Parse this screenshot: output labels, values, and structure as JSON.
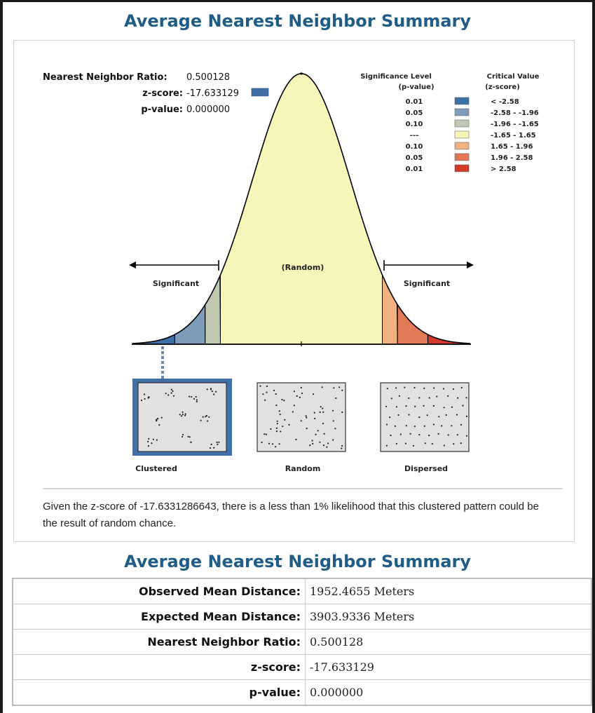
{
  "title_top": "Average Nearest Neighbor Summary",
  "title_table": "Average Nearest Neighbor Summary",
  "stats_box": {
    "ratio_label": "Nearest Neighbor Ratio:",
    "ratio_value": "0.500128",
    "z_label": "z-score:",
    "z_value": "-17.633129",
    "p_label": "p-value:",
    "p_value": "0.000000"
  },
  "legend": {
    "header_sig": "Significance Level",
    "header_sig_sub": "(p-value)",
    "header_crit": "Critical Value",
    "header_crit_sub": "(z-score)",
    "rows": [
      {
        "p": "0.01",
        "z": "< -2.58",
        "color": "#3f6fa6"
      },
      {
        "p": "0.05",
        "z": "-2.58 - -1.96",
        "color": "#7f9bbb"
      },
      {
        "p": "0.10",
        "z": "-1.96 - -1.65",
        "color": "#bfc9b1"
      },
      {
        "p": "---",
        "z": "-1.65 - 1.65",
        "color": "#f7f5b9"
      },
      {
        "p": "0.10",
        "z": "1.65 - 1.96",
        "color": "#f2b27f"
      },
      {
        "p": "0.05",
        "z": "1.96 - 2.58",
        "color": "#e27a55"
      },
      {
        "p": "0.01",
        "z": "> 2.58",
        "color": "#d23a2b"
      }
    ]
  },
  "chart_labels": {
    "random": "(Random)",
    "sig_left": "Significant",
    "sig_right": "Significant"
  },
  "patterns": [
    {
      "label": "Clustered"
    },
    {
      "label": "Random"
    },
    {
      "label": "Dispersed"
    }
  ],
  "summary_text": "Given the z-score of -17.6331286643, there is a less than 1% likelihood that this clustered pattern could be the result of random chance.",
  "table": [
    {
      "label": "Observed Mean Distance:",
      "value": "1952.4655 Meters"
    },
    {
      "label": "Expected Mean Distance:",
      "value": "3903.9336 Meters"
    },
    {
      "label": "Nearest Neighbor Ratio:",
      "value": "0.500128"
    },
    {
      "label": "z-score:",
      "value": "-17.633129"
    },
    {
      "label": "p-value:",
      "value": "0.000000"
    }
  ]
}
